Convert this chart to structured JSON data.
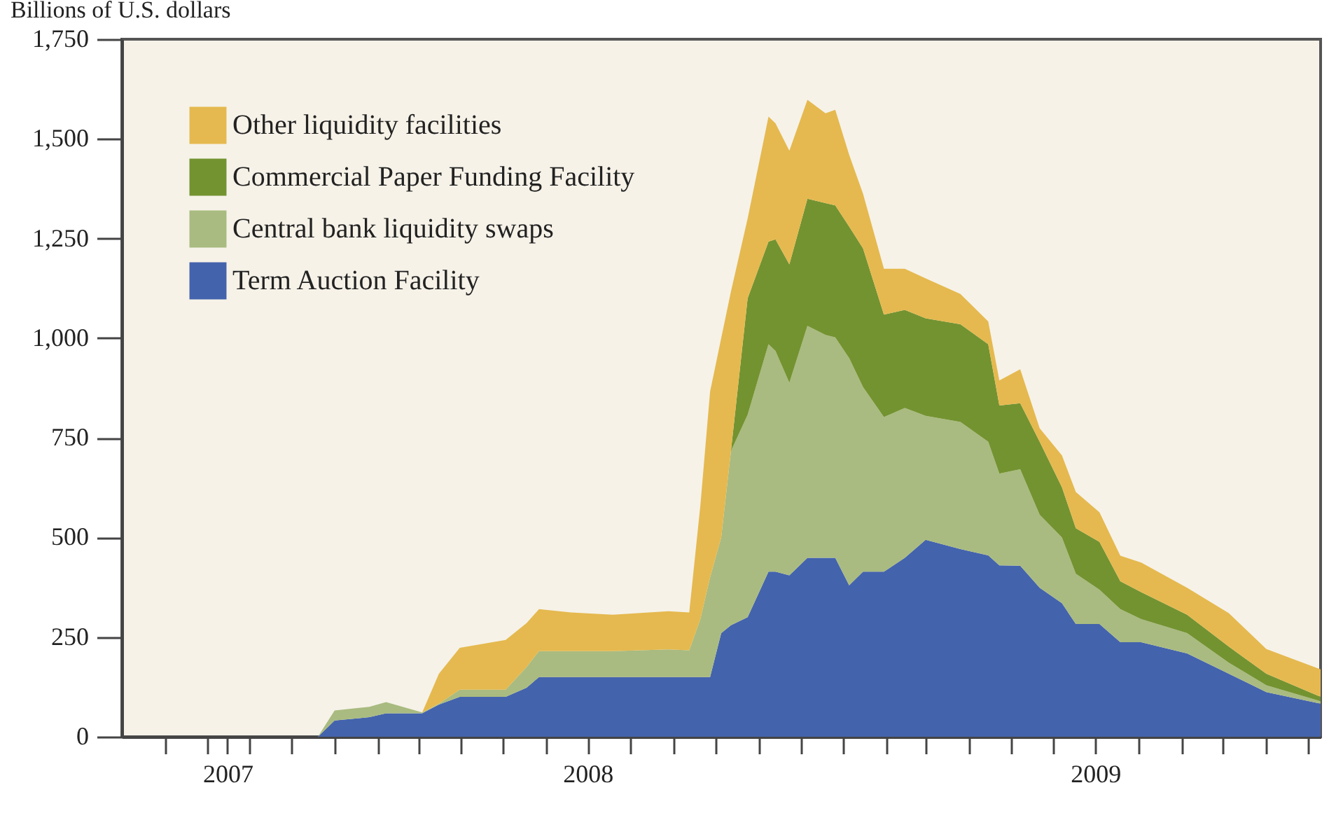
{
  "chart_data": {
    "type": "area",
    "stacked": true,
    "ylabel": "Billions of U.S. dollars",
    "x": [
      "2007-08-01",
      "2007-12-20",
      "2008-01-01",
      "2008-01-26",
      "2008-02-07",
      "2008-03-04",
      "2008-03-16",
      "2008-03-31",
      "2008-05-03",
      "2008-05-18",
      "2008-05-27",
      "2008-06-19",
      "2008-07-19",
      "2008-08-28",
      "2008-09-12",
      "2008-09-20",
      "2008-09-27",
      "2008-10-05",
      "2008-10-12",
      "2008-10-24",
      "2008-11-08",
      "2008-11-13",
      "2008-11-23",
      "2008-12-06",
      "2008-12-19",
      "2008-12-26",
      "2009-01-05",
      "2009-01-15",
      "2009-01-30",
      "2009-02-14",
      "2009-03-01",
      "2009-03-26",
      "2009-04-15",
      "2009-04-23",
      "2009-05-08",
      "2009-05-22",
      "2009-06-07",
      "2009-06-17",
      "2009-07-04",
      "2009-07-19",
      "2009-08-03",
      "2009-09-05",
      "2009-10-05",
      "2009-11-01",
      "2009-12-10"
    ],
    "series": [
      {
        "name": "Term Auction Facility",
        "color": "#4463ad",
        "values": [
          0,
          0,
          41,
          49,
          59,
          59,
          81,
          100,
          100,
          123,
          150,
          150,
          150,
          150,
          150,
          150,
          150,
          260,
          280,
          300,
          414,
          414,
          405,
          449,
          449,
          449,
          380,
          414,
          414,
          449,
          494,
          471,
          455,
          430,
          429,
          374,
          335,
          283,
          283,
          237,
          237,
          209,
          158,
          112,
          83
        ]
      },
      {
        "name": "Central bank liquidity swaps",
        "color": "#a9bb80",
        "values": [
          0,
          0,
          25,
          26,
          28,
          2,
          2,
          18,
          18,
          52,
          65,
          65,
          65,
          69,
          67,
          145,
          250,
          240,
          437,
          508,
          571,
          554,
          483,
          582,
          559,
          553,
          570,
          463,
          388,
          376,
          311,
          319,
          285,
          230,
          242,
          183,
          165,
          126,
          86,
          83,
          58,
          51,
          28,
          17,
          6
        ]
      },
      {
        "name": "Commercial Paper Funding Facility",
        "color": "#739331",
        "values": [
          0,
          0,
          0,
          0,
          0,
          0,
          0,
          0,
          0,
          0,
          0,
          0,
          0,
          0,
          0,
          0,
          0,
          0,
          0,
          292,
          257,
          280,
          297,
          319,
          331,
          331,
          330,
          348,
          257,
          246,
          245,
          245,
          245,
          171,
          166,
          183,
          126,
          114,
          120,
          70,
          68,
          46,
          40,
          29,
          11
        ]
      },
      {
        "name": "Other liquidity facilities",
        "color": "#e5b94f",
        "values": [
          0,
          0,
          0,
          0,
          0,
          0,
          75,
          105,
          125,
          110,
          105,
          97,
          91,
          96,
          95,
          285,
          466,
          500,
          400,
          200,
          314,
          291,
          285,
          248,
          225,
          240,
          180,
          137,
          115,
          103,
          100,
          76,
          57,
          63,
          85,
          34,
          80,
          91,
          74,
          64,
          74,
          68,
          84,
          62,
          69
        ]
      }
    ],
    "xlim": [
      "2007-08-01",
      "2009-12-10"
    ],
    "xticks": [
      {
        "value": "2007-09-01",
        "label": null
      },
      {
        "value": "2007-10-01",
        "label": null
      },
      {
        "value": "2007-10-16",
        "label": "2007"
      },
      {
        "value": "2007-11-01",
        "label": null
      },
      {
        "value": "2007-12-01",
        "label": null
      },
      {
        "value": "2008-01-01",
        "label": null
      },
      {
        "value": "2008-02-01",
        "label": null
      },
      {
        "value": "2008-03-01",
        "label": null
      },
      {
        "value": "2008-04-01",
        "label": null
      },
      {
        "value": "2008-05-01",
        "label": null
      },
      {
        "value": "2008-06-01",
        "label": null
      },
      {
        "value": "2008-07-01",
        "label": "2008"
      },
      {
        "value": "2008-08-01",
        "label": null
      },
      {
        "value": "2008-09-01",
        "label": null
      },
      {
        "value": "2008-10-01",
        "label": null
      },
      {
        "value": "2008-11-01",
        "label": null
      },
      {
        "value": "2008-12-01",
        "label": null
      },
      {
        "value": "2009-01-01",
        "label": null
      },
      {
        "value": "2009-02-01",
        "label": null
      },
      {
        "value": "2009-03-01",
        "label": null
      },
      {
        "value": "2009-04-01",
        "label": null
      },
      {
        "value": "2009-05-01",
        "label": null
      },
      {
        "value": "2009-06-01",
        "label": null
      },
      {
        "value": "2009-07-01",
        "label": "2009"
      },
      {
        "value": "2009-08-01",
        "label": null
      },
      {
        "value": "2009-09-01",
        "label": null
      },
      {
        "value": "2009-10-01",
        "label": null
      },
      {
        "value": "2009-11-01",
        "label": null
      },
      {
        "value": "2009-12-01",
        "label": null
      }
    ],
    "ylim": [
      0,
      1750
    ],
    "yticks": [
      {
        "value": 0,
        "label": "0"
      },
      {
        "value": 250,
        "label": "250"
      },
      {
        "value": 500,
        "label": "500"
      },
      {
        "value": 750,
        "label": "750"
      },
      {
        "value": 1000,
        "label": "1,000"
      },
      {
        "value": 1250,
        "label": "1,250"
      },
      {
        "value": 1500,
        "label": "1,500"
      },
      {
        "value": 1750,
        "label": "1,750"
      }
    ],
    "legend": "top left"
  }
}
